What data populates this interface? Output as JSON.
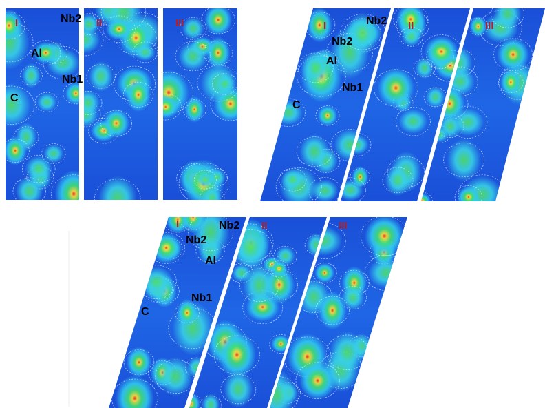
{
  "figures": [
    {
      "panels": [
        "I",
        "II",
        "III"
      ],
      "atoms": [
        "Nb2",
        "Al",
        "Nb1",
        "C"
      ]
    },
    {
      "panels": [
        "I",
        "II",
        "III"
      ],
      "atoms": [
        "Nb2",
        "Nb2",
        "Al",
        "Nb1",
        "C"
      ]
    },
    {
      "panels": [
        "I",
        "II",
        "III"
      ],
      "atoms": [
        "Nb2",
        "Nb2",
        "Al",
        "Nb1",
        "C"
      ]
    }
  ]
}
